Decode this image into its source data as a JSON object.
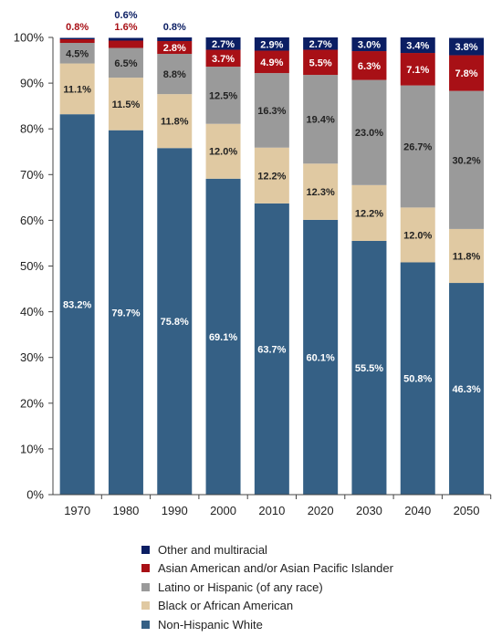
{
  "chart_data": {
    "type": "bar",
    "stacked": true,
    "ylim": [
      0,
      100
    ],
    "yticks": [
      "0%",
      "10%",
      "20%",
      "30%",
      "40%",
      "50%",
      "60%",
      "70%",
      "80%",
      "90%",
      "100%"
    ],
    "categories": [
      "1970",
      "1980",
      "1990",
      "2000",
      "2010",
      "2020",
      "2030",
      "2040",
      "2050"
    ],
    "series": [
      {
        "name": "Non-Hispanic White",
        "color": "#356085",
        "values": [
          83.2,
          79.7,
          75.8,
          69.1,
          63.7,
          60.1,
          55.5,
          50.8,
          46.3
        ],
        "labels": [
          "83.2%",
          "79.7%",
          "75.8%",
          "69.1%",
          "63.7%",
          "60.1%",
          "55.5%",
          "50.8%",
          "46.3%"
        ]
      },
      {
        "name": "Black or African American",
        "color": "#e0c9a2",
        "values": [
          11.1,
          11.5,
          11.8,
          12.0,
          12.2,
          12.3,
          12.2,
          12.0,
          11.8
        ],
        "labels": [
          "11.1%",
          "11.5%",
          "11.8%",
          "12.0%",
          "12.2%",
          "12.3%",
          "12.2%",
          "12.0%",
          "11.8%"
        ]
      },
      {
        "name": "Latino or Hispanic (of any race)",
        "color": "#9a9a9a",
        "values": [
          4.5,
          6.5,
          8.8,
          12.5,
          16.3,
          19.4,
          23.0,
          26.7,
          30.2
        ],
        "labels": [
          "4.5%",
          "6.5%",
          "8.8%",
          "12.5%",
          "16.3%",
          "19.4%",
          "23.0%",
          "26.7%",
          "30.2%"
        ]
      },
      {
        "name": "Asian American and/or Asian Pacific Islander",
        "color": "#a81016",
        "values": [
          0.8,
          1.6,
          2.8,
          3.7,
          4.9,
          5.5,
          6.3,
          7.1,
          7.8
        ],
        "labels": [
          "0.8%",
          "1.6%",
          "2.8%",
          "3.7%",
          "4.9%",
          "5.5%",
          "6.3%",
          "7.1%",
          "7.8%"
        ]
      },
      {
        "name": "Other and multiracial",
        "color": "#0b1e63",
        "values": [
          0.3,
          0.6,
          0.8,
          2.7,
          2.9,
          2.7,
          3.0,
          3.4,
          3.8
        ],
        "labels": [
          "",
          "0.6%",
          "0.8%",
          "2.7%",
          "2.9%",
          "2.7%",
          "3.0%",
          "3.4%",
          "3.8%"
        ]
      }
    ],
    "legend": {
      "position": "bottom",
      "order": [
        "Other and multiracial",
        "Asian American and/or Asian Pacific Islander",
        "Latino or Hispanic (of any race)",
        "Black or African American",
        "Non-Hispanic White"
      ]
    }
  }
}
